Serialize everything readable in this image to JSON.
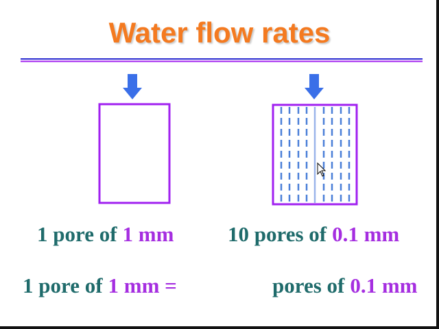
{
  "title": "Water flow rates",
  "left_label": {
    "text": "1 pore of",
    "size": "1 mm"
  },
  "right_label": {
    "text": "10 pores of",
    "size": "0.1 mm"
  },
  "bottom_left": {
    "text": "1 pore of",
    "size": "1 mm ="
  },
  "bottom_right": {
    "text": "pores of",
    "size": "0.1 mm"
  }
}
